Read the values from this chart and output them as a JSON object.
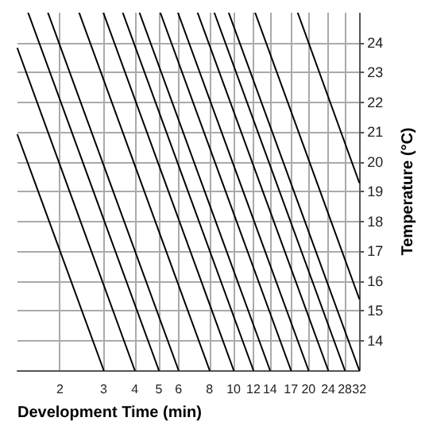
{
  "chart_data": {
    "type": "line",
    "xlabel": "Development Time (min)",
    "ylabel": "Temperature (°C)",
    "log": "x",
    "grid": true,
    "marker": "none",
    "line_style": "solid",
    "xlim": [
      1.35,
      32
    ],
    "xticks": [
      2,
      3,
      4,
      5,
      6,
      8,
      10,
      12,
      14,
      17,
      20,
      24,
      28,
      32
    ],
    "ylim": [
      13,
      25
    ],
    "yticks": [
      14,
      15,
      16,
      17,
      18,
      19,
      20,
      21,
      22,
      23,
      24
    ],
    "series": [
      {
        "color": "#000000",
        "x": [
          1.35,
          3
        ],
        "values": [
          20.9,
          13
        ]
      },
      {
        "color": "#000000",
        "x": [
          1.35,
          4
        ],
        "values": [
          23.8,
          13
        ]
      },
      {
        "color": "#000000",
        "x": [
          1.49,
          5
        ],
        "values": [
          25,
          13
        ]
      },
      {
        "color": "#000000",
        "x": [
          1.79,
          6
        ],
        "values": [
          25,
          13
        ]
      },
      {
        "color": "#000000",
        "x": [
          2.39,
          8
        ],
        "values": [
          25,
          13
        ]
      },
      {
        "color": "#000000",
        "x": [
          2.99,
          10
        ],
        "values": [
          25,
          13
        ]
      },
      {
        "color": "#000000",
        "x": [
          3.58,
          12
        ],
        "values": [
          25,
          13
        ]
      },
      {
        "color": "#000000",
        "x": [
          4.18,
          14
        ],
        "values": [
          25,
          13
        ]
      },
      {
        "color": "#000000",
        "x": [
          5.07,
          17
        ],
        "values": [
          25,
          13
        ]
      },
      {
        "color": "#000000",
        "x": [
          5.97,
          20
        ],
        "values": [
          25,
          13
        ]
      },
      {
        "color": "#000000",
        "x": [
          7.16,
          24
        ],
        "values": [
          25,
          13
        ]
      },
      {
        "color": "#000000",
        "x": [
          8.36,
          28
        ],
        "values": [
          25,
          13
        ]
      },
      {
        "color": "#000000",
        "x": [
          9.55,
          32
        ],
        "values": [
          25,
          13
        ]
      },
      {
        "color": "#000000",
        "x": [
          12.2,
          32
        ],
        "values": [
          25,
          15.4
        ]
      },
      {
        "color": "#000000",
        "x": [
          18.1,
          32
        ],
        "values": [
          25,
          19.3
        ]
      }
    ]
  }
}
